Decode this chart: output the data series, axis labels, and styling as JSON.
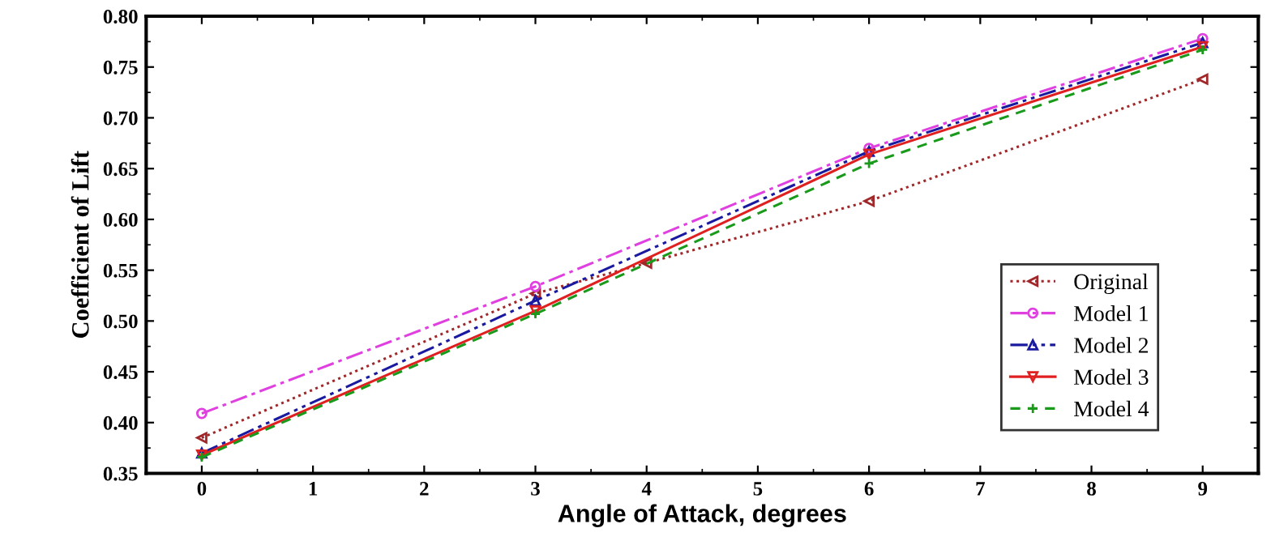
{
  "chart_data": {
    "type": "line",
    "xlabel": "Angle of Attack, degrees",
    "ylabel": "Coefficient of Lift",
    "xlim": [
      -0.5,
      9.5
    ],
    "xticks": [
      0,
      1,
      2,
      3,
      4,
      5,
      6,
      7,
      8,
      9
    ],
    "ylim": [
      0.35,
      0.8
    ],
    "yticks": [
      0.35,
      {
        "value": 0.4,
        "label": "0.40"
      },
      0.45,
      {
        "value": 0.5,
        "label": "0.50"
      },
      0.55,
      {
        "value": 0.6,
        "label": "0.60"
      },
      0.65,
      {
        "value": 0.7,
        "label": "0.70"
      },
      0.75,
      {
        "value": 0.8,
        "label": "0.80"
      }
    ],
    "grid": false,
    "legend": "bottom right",
    "series": [
      {
        "name": "Original",
        "color": "#a0282a",
        "x": [
          0,
          3,
          4,
          6,
          9
        ],
        "values": [
          0.385,
          0.527,
          0.557,
          0.618,
          0.738
        ],
        "marker": "triangle_left",
        "line_style": "dotted"
      },
      {
        "name": "Model 1",
        "color": "#e040e0",
        "x": [
          0,
          3,
          6,
          9
        ],
        "values": [
          0.409,
          0.534,
          0.67,
          0.778
        ],
        "marker": "circle",
        "line_style": "dashdot"
      },
      {
        "name": "Model 2",
        "color": "#1a1aa0",
        "x": [
          0,
          3,
          6,
          9
        ],
        "values": [
          0.37,
          0.52,
          0.667,
          0.774
        ],
        "marker": "triangle",
        "line_style": "dashdotdot"
      },
      {
        "name": "Model 3",
        "color": "#e02020",
        "x": [
          0,
          3,
          6,
          9
        ],
        "values": [
          0.368,
          0.51,
          0.664,
          0.77
        ],
        "marker": "triangle_down",
        "line_style": "solid"
      },
      {
        "name": "Model 4",
        "color": "#1a9a1a",
        "x": [
          0,
          3,
          6,
          9
        ],
        "values": [
          0.366,
          0.507,
          0.655,
          0.767
        ],
        "marker": "cross",
        "line_style": "dashed"
      }
    ]
  }
}
